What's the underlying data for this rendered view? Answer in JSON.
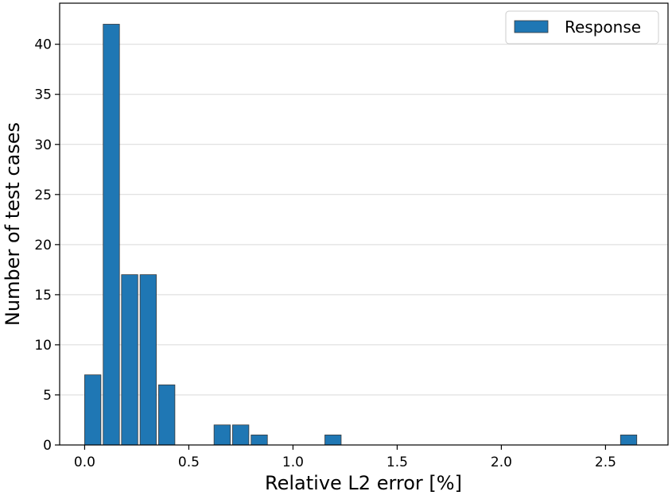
{
  "chart_data": {
    "type": "bar",
    "title": "",
    "xlabel": "Relative L2 error [%]",
    "ylabel": "Number of test cases",
    "xlim": [
      -0.12,
      2.8
    ],
    "ylim": [
      0,
      44.1
    ],
    "grid": "y",
    "legend_position": "top-right",
    "x_ticks": [
      {
        "value": 0.0,
        "label": "0.0"
      },
      {
        "value": 0.5,
        "label": "0.5"
      },
      {
        "value": 1.0,
        "label": "1.0"
      },
      {
        "value": 1.5,
        "label": "1.5"
      },
      {
        "value": 2.0,
        "label": "2.0"
      },
      {
        "value": 2.5,
        "label": "2.5"
      }
    ],
    "y_ticks": [
      {
        "value": 0,
        "label": "0"
      },
      {
        "value": 5,
        "label": "5"
      },
      {
        "value": 10,
        "label": "10"
      },
      {
        "value": 15,
        "label": "15"
      },
      {
        "value": 20,
        "label": "20"
      },
      {
        "value": 25,
        "label": "25"
      },
      {
        "value": 30,
        "label": "30"
      },
      {
        "value": 35,
        "label": "35"
      },
      {
        "value": 40,
        "label": "40"
      }
    ],
    "bin_width": 0.0887,
    "bar_width_fraction": 0.88,
    "series": [
      {
        "name": "Response",
        "color": "#1f77b4",
        "edge_color": "#3a3a3a",
        "bins": [
          {
            "x_start": 0.0,
            "count": 7
          },
          {
            "x_start": 0.089,
            "count": 42
          },
          {
            "x_start": 0.177,
            "count": 17
          },
          {
            "x_start": 0.266,
            "count": 17
          },
          {
            "x_start": 0.355,
            "count": 6
          },
          {
            "x_start": 0.621,
            "count": 2
          },
          {
            "x_start": 0.71,
            "count": 2
          },
          {
            "x_start": 0.799,
            "count": 1
          },
          {
            "x_start": 1.153,
            "count": 1
          },
          {
            "x_start": 2.572,
            "count": 1
          }
        ]
      }
    ]
  }
}
